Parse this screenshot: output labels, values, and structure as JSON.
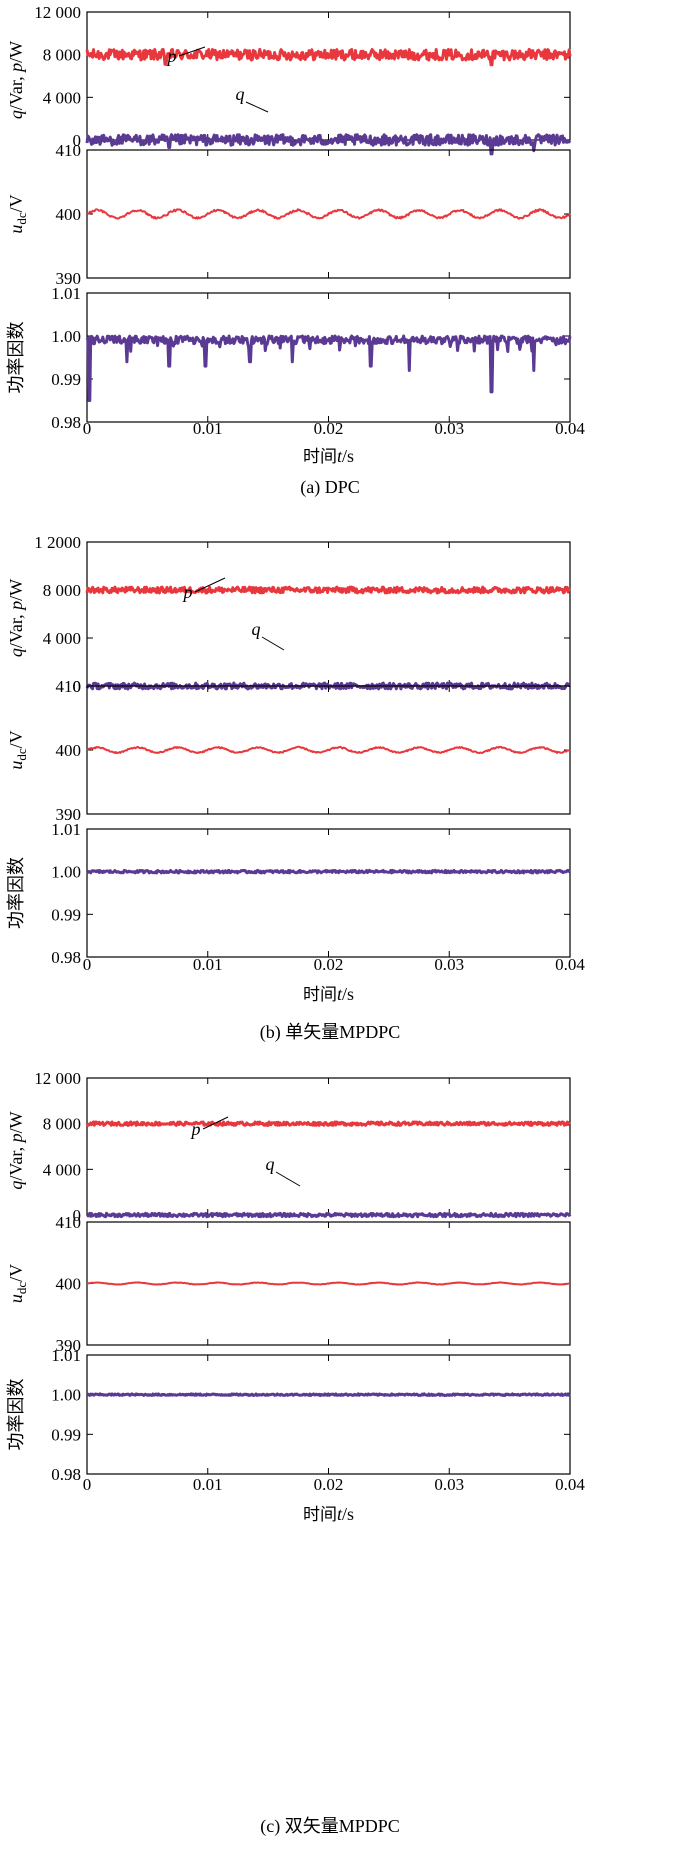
{
  "colors": {
    "red": "#e8383d",
    "purple": "#5b3a94",
    "axis": "#000000"
  },
  "x_axis": {
    "ticks": [
      0,
      0.01,
      0.02,
      0.03,
      0.04
    ],
    "tick_labels": [
      "0",
      "0.01",
      "0.02",
      "0.03",
      "0.04"
    ],
    "label_prefix": "时间",
    "label_var": "t",
    "label_suffix": "/s"
  },
  "labels": {
    "power_ylabel": "q/Var,  p/W",
    "power_ylabel_q": "q",
    "power_ylabel_mid": "/Var,  ",
    "power_ylabel_p": "p",
    "power_ylabel_end": "/W",
    "udc_ylabel_u": "u",
    "udc_ylabel_sub": "dc",
    "udc_ylabel_end": "/V",
    "pf_ylabel": "功率因数",
    "p_annotation": "p",
    "q_annotation": "q"
  },
  "panels": [
    {
      "caption": "(a) DPC",
      "power_tick_labels": [
        "12 000",
        "8 000",
        "4 000",
        "0"
      ],
      "udc_tick_labels": [
        "410",
        "400",
        "390"
      ],
      "pf_tick_labels": [
        "1.01",
        "1.00",
        "0.99",
        "0.98"
      ]
    },
    {
      "caption": "(b) 单矢量MPDPC",
      "power_tick_labels": [
        "1 2000",
        "8 000",
        "4 000",
        "0"
      ],
      "udc_tick_labels": [
        "410",
        "400",
        "390"
      ],
      "pf_tick_labels": [
        "1.01",
        "1.00",
        "0.99",
        "0.98"
      ]
    },
    {
      "caption": "(c) 双矢量MPDPC",
      "power_tick_labels": [
        "12 000",
        "8 000",
        "4 000",
        "0"
      ],
      "udc_tick_labels": [
        "410",
        "400",
        "390"
      ],
      "pf_tick_labels": [
        "1.01",
        "1.00",
        "0.99",
        "0.98"
      ]
    }
  ],
  "chart_data": [
    {
      "type": "line",
      "panel": "(a) DPC",
      "x_range": [
        0,
        0.04
      ],
      "subplots": [
        {
          "ylim": [
            0,
            12000
          ],
          "yticks": [
            0,
            4000,
            8000,
            12000
          ],
          "series": [
            {
              "name": "p",
              "color": "#e8383d",
              "mean": 8000,
              "ripple": 500,
              "dips": [
                [
                  0.0065,
                  7100
                ],
                [
                  0.0335,
                  7050
                ]
              ]
            },
            {
              "name": "q",
              "color": "#5b3a94",
              "mean": 0,
              "ripple": 500,
              "dips": [
                [
                  0.0068,
                  -700
                ],
                [
                  0.0335,
                  -1300
                ],
                [
                  0.037,
                  -1000
                ]
              ]
            }
          ]
        },
        {
          "ylim": [
            390,
            410
          ],
          "yticks": [
            390,
            400,
            410
          ],
          "series": [
            {
              "color": "#e8383d",
              "mean": 400,
              "ripple": 0.6
            }
          ]
        },
        {
          "ylim": [
            0.98,
            1.01
          ],
          "yticks": [
            0.98,
            0.99,
            1.0,
            1.01
          ],
          "series": [
            {
              "color": "#5b3a94",
              "max": 1.0,
              "min": 0.985,
              "spikes": [
                [
                  0.0002,
                  0.985
                ],
                [
                  0.0033,
                  0.994
                ],
                [
                  0.0068,
                  0.993
                ],
                [
                  0.0098,
                  0.993
                ],
                [
                  0.0135,
                  0.994
                ],
                [
                  0.017,
                  0.994
                ],
                [
                  0.0235,
                  0.993
                ],
                [
                  0.0267,
                  0.992
                ],
                [
                  0.0335,
                  0.987
                ],
                [
                  0.037,
                  0.992
                ]
              ]
            }
          ]
        }
      ]
    },
    {
      "type": "line",
      "panel": "(b) 单矢量MPDPC",
      "x_range": [
        0,
        0.04
      ],
      "subplots": [
        {
          "ylim": [
            0,
            12000
          ],
          "yticks": [
            0,
            4000,
            8000,
            12000
          ],
          "series": [
            {
              "name": "p",
              "color": "#e8383d",
              "mean": 8000,
              "ripple": 250
            },
            {
              "name": "q",
              "color": "#5b3a94",
              "mean": 0,
              "ripple": 250
            }
          ]
        },
        {
          "ylim": [
            390,
            410
          ],
          "yticks": [
            390,
            400,
            410
          ],
          "series": [
            {
              "color": "#e8383d",
              "mean": 400,
              "ripple": 0.4
            }
          ]
        },
        {
          "ylim": [
            0.98,
            1.01
          ],
          "yticks": [
            0.98,
            0.99,
            1.0,
            1.01
          ],
          "series": [
            {
              "color": "#5b3a94",
              "mean": 1.0,
              "ripple": 0.0003
            }
          ]
        }
      ]
    },
    {
      "type": "line",
      "panel": "(c) 双矢量MPDPC",
      "x_range": [
        0,
        0.04
      ],
      "subplots": [
        {
          "ylim": [
            0,
            12000
          ],
          "yticks": [
            0,
            4000,
            8000,
            12000
          ],
          "series": [
            {
              "name": "p",
              "color": "#e8383d",
              "mean": 8000,
              "ripple": 150
            },
            {
              "name": "q",
              "color": "#5b3a94",
              "mean": 0,
              "ripple": 150
            }
          ]
        },
        {
          "ylim": [
            390,
            410
          ],
          "yticks": [
            390,
            400,
            410
          ],
          "series": [
            {
              "color": "#e8383d",
              "mean": 400,
              "ripple": 0.15
            }
          ]
        },
        {
          "ylim": [
            0.98,
            1.01
          ],
          "yticks": [
            0.98,
            0.99,
            1.0,
            1.01
          ],
          "series": [
            {
              "color": "#5b3a94",
              "mean": 1.0,
              "ripple": 0.0002
            }
          ]
        }
      ]
    }
  ]
}
